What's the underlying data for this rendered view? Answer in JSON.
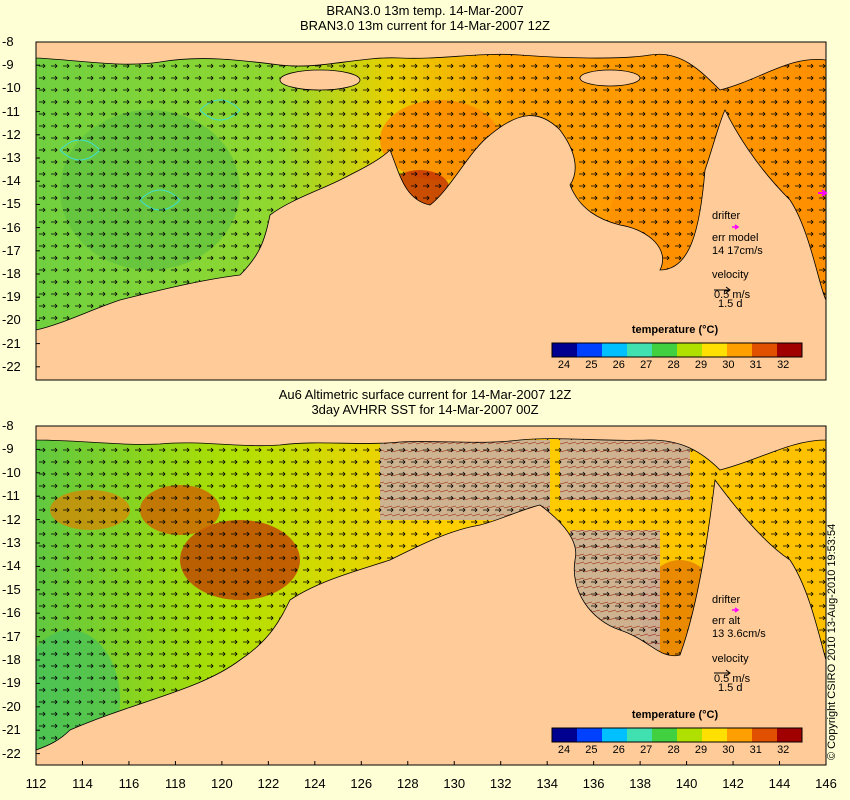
{
  "panel1": {
    "title_line1": "BRAN3.0 13m temp. 14-Mar-2007",
    "title_line2": "BRAN3.0 13m current for 14-Mar-2007 12Z",
    "legend": {
      "drifter": "drifter",
      "err_label": "err model",
      "err_value": "14 17cm/s",
      "velocity": "velocity",
      "velocity_scale": "0.5 m/s",
      "velocity_time": "1.5 d"
    },
    "colorbar_title": "temperature (°C)"
  },
  "panel2": {
    "title_line1": "Au6 Altimetric surface current for 14-Mar-2007 12Z",
    "title_line2": "3day AVHRR SST for 14-Mar-2007 00Z",
    "legend": {
      "drifter": "drifter",
      "err_label": "err alt",
      "err_value": "13 3.6cm/s",
      "velocity": "velocity",
      "velocity_scale": "0.5 m/s",
      "velocity_time": "1.5 d"
    },
    "colorbar_title": "temperature (°C)"
  },
  "colorbar_ticks": [
    "24",
    "25",
    "26",
    "27",
    "28",
    "29",
    "30",
    "31",
    "32"
  ],
  "colorbar_colors": [
    "#000090",
    "#0040ff",
    "#00c0ff",
    "#40e0b0",
    "#40d040",
    "#b0e000",
    "#ffe000",
    "#ffa000",
    "#e05000",
    "#a00000"
  ],
  "y_ticks": [
    "-8",
    "-9",
    "-10",
    "-11",
    "-12",
    "-13",
    "-14",
    "-15",
    "-16",
    "-17",
    "-18",
    "-19",
    "-20",
    "-21",
    "-22"
  ],
  "x_ticks": [
    "112",
    "114",
    "116",
    "118",
    "120",
    "122",
    "124",
    "126",
    "128",
    "130",
    "132",
    "134",
    "136",
    "138",
    "140",
    "142",
    "144",
    "146"
  ],
  "copyright": "© Copyright CSIRO 2010 13-Aug-2010 19:53:54",
  "colors": {
    "land": "#ffcc99",
    "cloud": "#c8b0a0",
    "drifter": "#ff00ff",
    "background": "#feffd5"
  }
}
